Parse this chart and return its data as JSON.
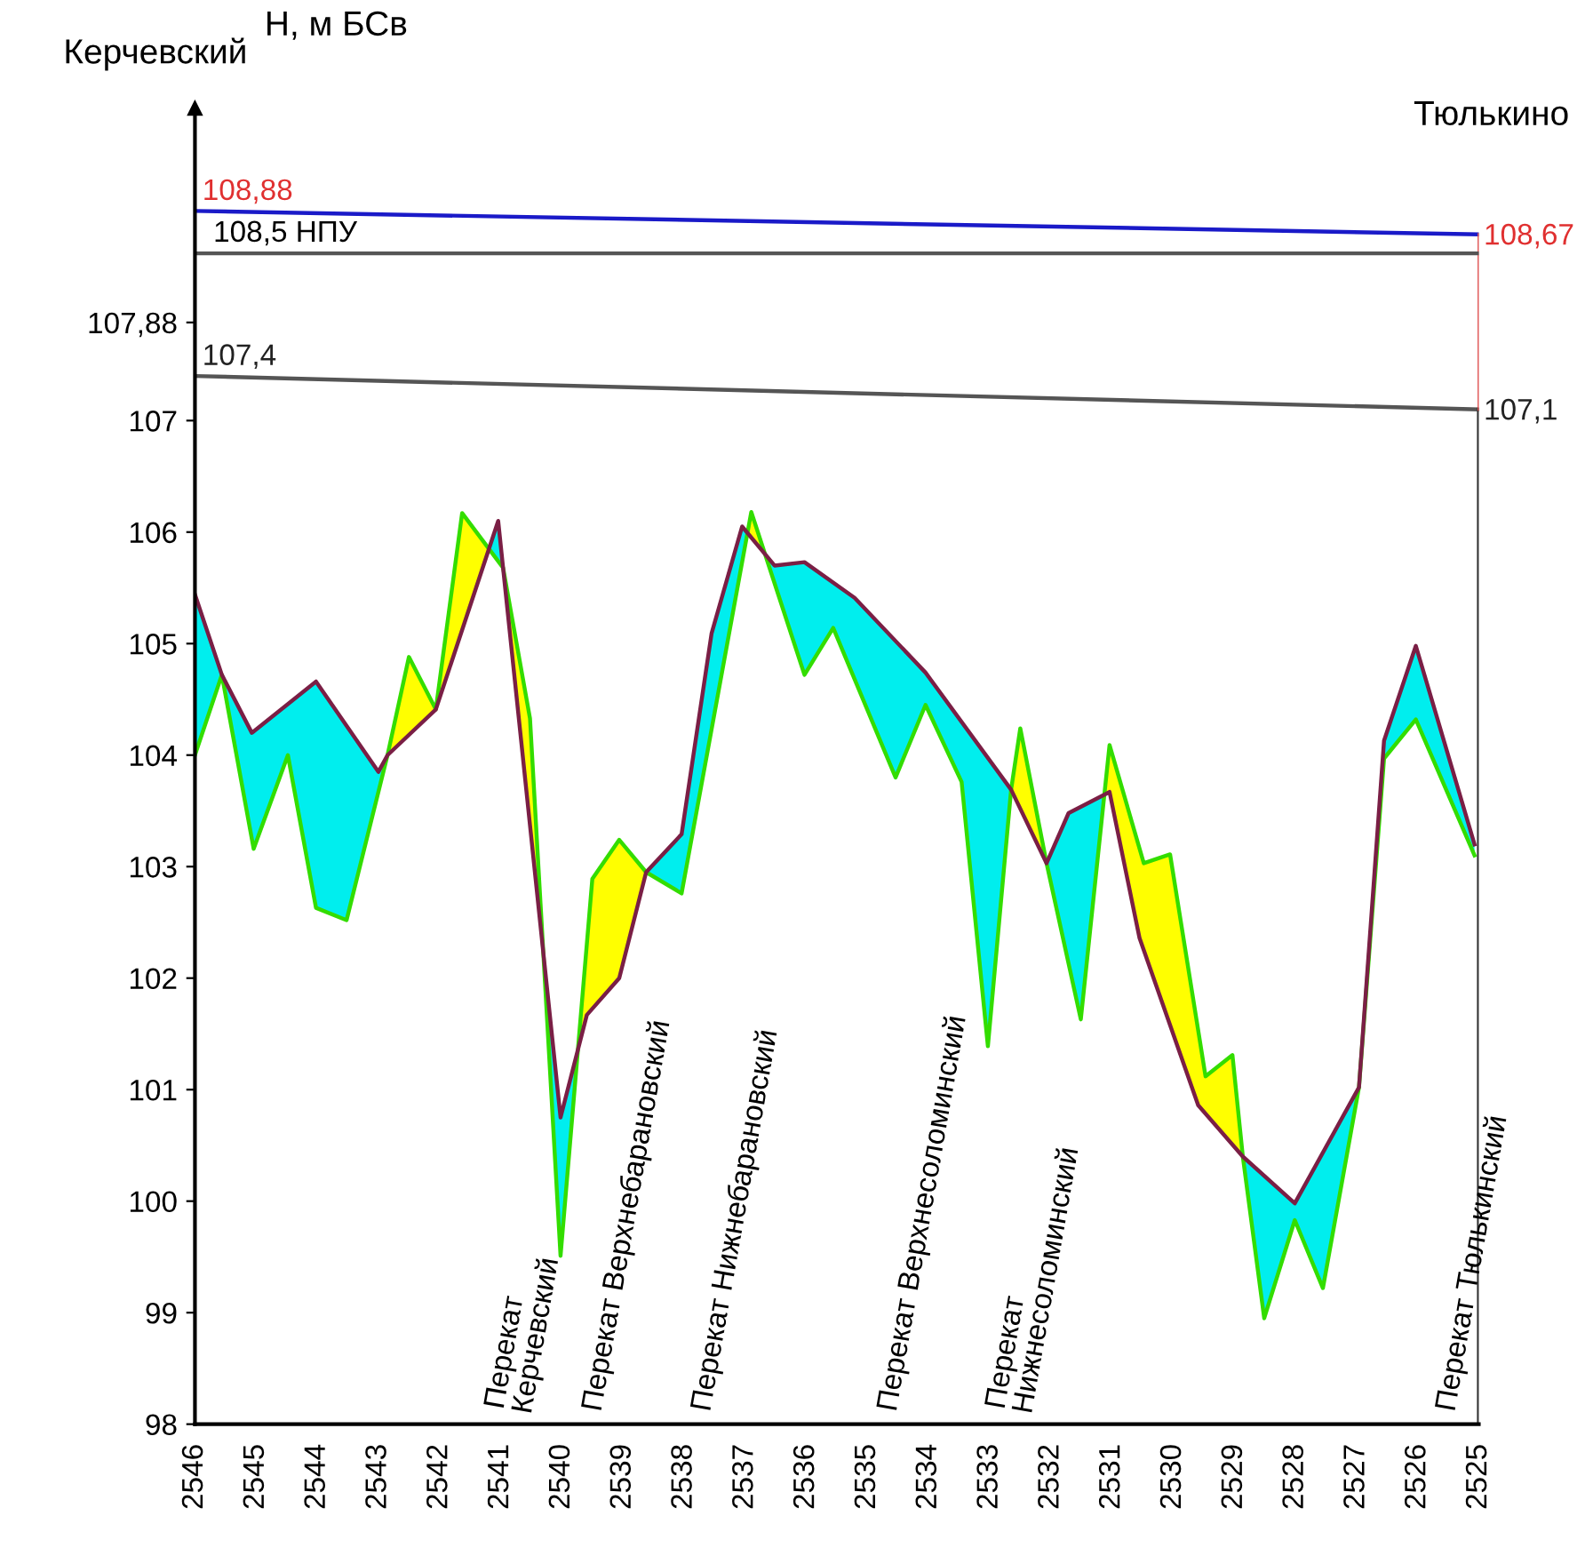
{
  "chart_data": {
    "type": "line",
    "ylabel": "Н, м БСв",
    "xlim": [
      2546,
      2525
    ],
    "xticks": [
      2546,
      2545,
      2544,
      2543,
      2542,
      2541,
      2540,
      2539,
      2538,
      2537,
      2536,
      2535,
      2534,
      2533,
      2532,
      2531,
      2530,
      2529,
      2528,
      2527,
      2526,
      2525
    ],
    "ylim": [
      98,
      109.8
    ],
    "yticks": [
      98,
      99,
      100,
      101,
      102,
      103,
      104,
      105,
      106,
      107,
      {
        "value": 107.88,
        "label": "107,88"
      }
    ],
    "grid": false,
    "legend": false,
    "marker": "none",
    "line_style": "solid",
    "colors": [
      "#00eeee",
      "#ffff00"
    ],
    "series": [
      {
        "color": "#7a1f45",
        "x": [
          2546,
          2545.56,
          2545.07,
          2544.02,
          2543.0,
          2542.85,
          2542.06,
          2541.04,
          2540.96,
          2540.02,
          2539.59,
          2539.06,
          2538.62,
          2538.04,
          2537.55,
          2537.05,
          2536.52,
          2536.03,
          2535.21,
          2534.05,
          2532.65,
          2532.07,
          2531.71,
          2531.04,
          2530.55,
          2529.59,
          2528.86,
          2528.01,
          2526.96,
          2526.55,
          2526.03,
          2525.07
        ],
        "values": [
          105.44,
          104.72,
          104.2,
          104.66,
          103.85,
          104.0,
          104.41,
          106.1,
          105.68,
          100.75,
          101.67,
          102.0,
          102.95,
          103.29,
          105.09,
          106.05,
          105.7,
          105.73,
          105.41,
          104.74,
          103.69,
          103.03,
          103.48,
          103.67,
          102.36,
          100.86,
          100.4,
          99.98,
          101.02,
          104.13,
          104.98,
          103.2
        ]
      },
      {
        "color": "#33dd00",
        "x": [
          2546,
          2545.56,
          2545.04,
          2544.48,
          2544.02,
          2543.52,
          2542.85,
          2542.5,
          2542.06,
          2541.63,
          2540.96,
          2540.52,
          2540.02,
          2539.5,
          2539.06,
          2538.62,
          2538.04,
          2536.9,
          2536.03,
          2535.56,
          2534.54,
          2534.05,
          2533.46,
          2533.03,
          2532.65,
          2532.5,
          2532.07,
          2531.51,
          2531.04,
          2530.48,
          2530.05,
          2529.47,
          2529.03,
          2528.86,
          2528.51,
          2528.01,
          2527.55,
          2526.96,
          2526.55,
          2526.03,
          2525.07
        ],
        "values": [
          104.0,
          104.72,
          103.16,
          104.0,
          102.63,
          102.52,
          104.0,
          104.88,
          104.41,
          106.17,
          105.68,
          104.33,
          99.51,
          102.89,
          103.24,
          102.95,
          102.76,
          106.18,
          104.72,
          105.14,
          103.8,
          104.45,
          103.76,
          101.39,
          103.69,
          104.24,
          103.03,
          101.63,
          104.09,
          103.03,
          103.11,
          101.12,
          101.31,
          100.4,
          98.95,
          99.83,
          99.22,
          101.02,
          103.97,
          104.32,
          103.1
        ]
      },
      {
        "color": "#1a1ac8",
        "x": [
          2546,
          2525
        ],
        "values": [
          108.88,
          108.67
        ],
        "value_labels": [
          "108,88",
          "108,67"
        ]
      },
      {
        "color": "#555555",
        "x": [
          2546,
          2525
        ],
        "values": [
          107.4,
          107.1
        ],
        "value_labels": [
          "107,4",
          "107,1"
        ]
      }
    ],
    "ref_lines": [
      {
        "axis": "y",
        "value": 108.5,
        "label": "108,5 НПУ",
        "color": "#555555"
      }
    ],
    "annotations": [
      "Керчевский",
      "Тюлькино",
      "Перекат\nКерчевский",
      "Перекат Верхнебарановский",
      "Перекат Нижнебарановский",
      "Перекат Верхнесоломинский",
      "Перекат\nНижнесоломинский",
      "Перекат Тюлькинский"
    ]
  }
}
